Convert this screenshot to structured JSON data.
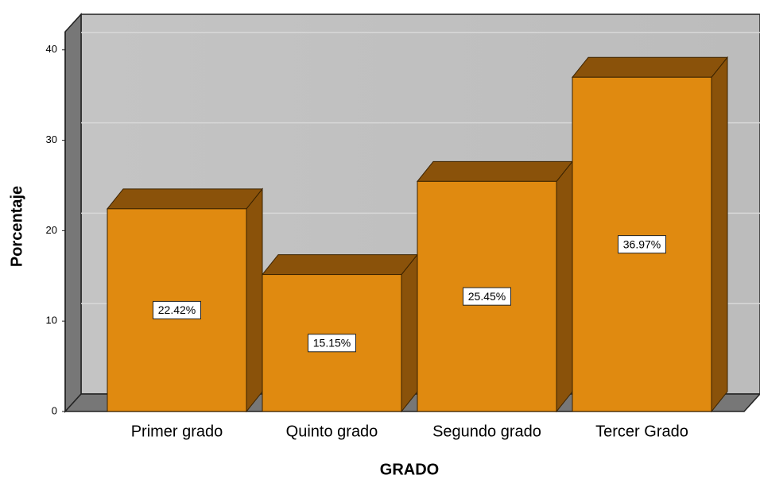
{
  "chart_data": {
    "type": "bar3d",
    "categories": [
      "Primer grado",
      "Quinto grado",
      "Segundo grado",
      "Tercer Grado"
    ],
    "values": [
      22.42,
      15.15,
      25.45,
      36.97
    ],
    "value_labels": [
      "22.42%",
      "15.15%",
      "25.45%",
      "36.97%"
    ],
    "color": "#e08a10",
    "ylim": [
      0,
      42
    ],
    "yticks": [
      0,
      10,
      20,
      30,
      40
    ],
    "ylabel": "Porcentaje",
    "xlabel": "GRADO",
    "grid": true
  }
}
